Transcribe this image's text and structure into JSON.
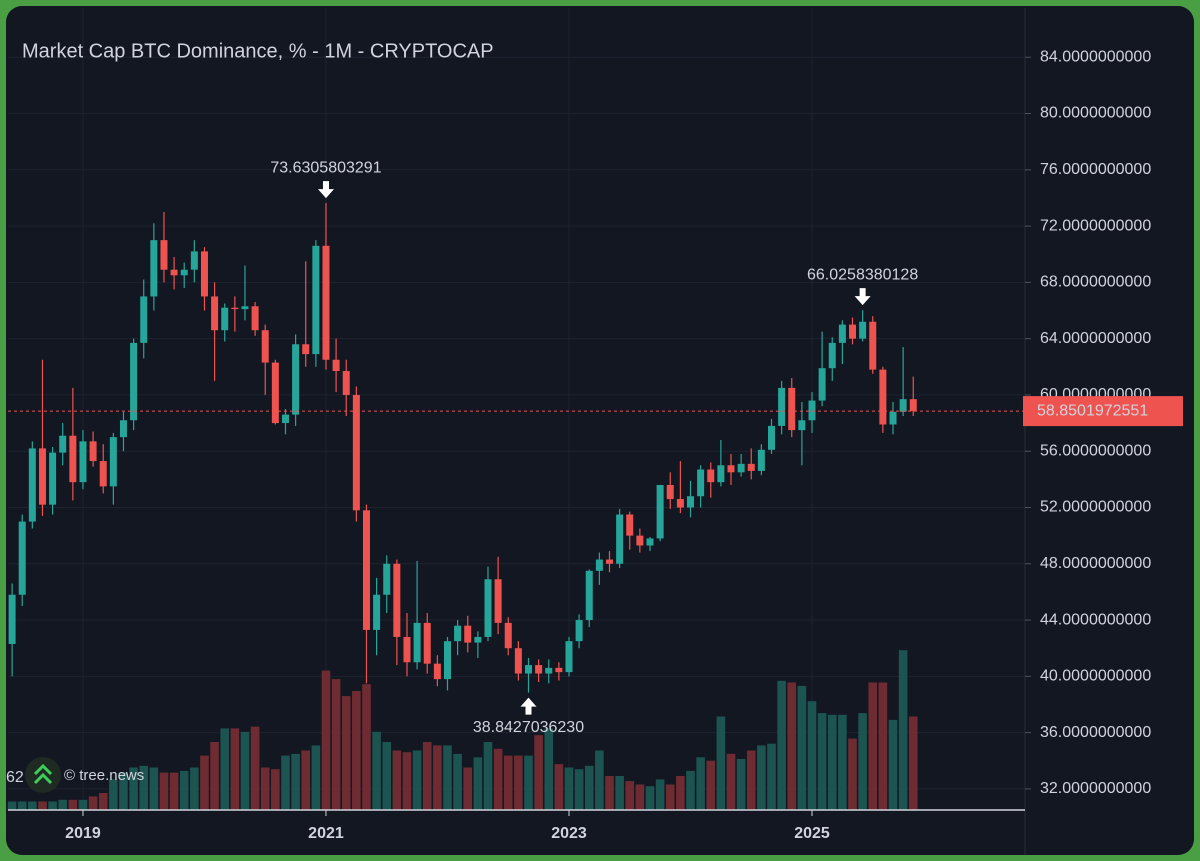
{
  "chart_data": {
    "type": "candlestick",
    "title": "Market Cap BTC Dominance, % - 1M - CRYPTOCAP",
    "x": [
      2018.4167,
      2018.5,
      2018.5833,
      2018.6667,
      2018.75,
      2018.8333,
      2018.9167,
      2019.0,
      2019.0833,
      2019.1667,
      2019.25,
      2019.3333,
      2019.4167,
      2019.5,
      2019.5833,
      2019.6667,
      2019.75,
      2019.8333,
      2019.9167,
      2020.0,
      2020.0833,
      2020.1667,
      2020.25,
      2020.3333,
      2020.4167,
      2020.5,
      2020.5833,
      2020.6667,
      2020.75,
      2020.8333,
      2020.9167,
      2021.0,
      2021.0833,
      2021.1667,
      2021.25,
      2021.3333,
      2021.4167,
      2021.5,
      2021.5833,
      2021.6667,
      2021.75,
      2021.8333,
      2021.9167,
      2022.0,
      2022.0833,
      2022.1667,
      2022.25,
      2022.3333,
      2022.4167,
      2022.5,
      2022.5833,
      2022.6667,
      2022.75,
      2022.8333,
      2022.9167,
      2023.0,
      2023.0833,
      2023.1667,
      2023.25,
      2023.3333,
      2023.4167,
      2023.5,
      2023.5833,
      2023.6667,
      2023.75,
      2023.8333,
      2023.9167,
      2024.0,
      2024.0833,
      2024.1667,
      2024.25,
      2024.3333,
      2024.4167,
      2024.5,
      2024.5833,
      2024.6667,
      2024.75,
      2024.8333,
      2024.9167,
      2025.0,
      2025.0833,
      2025.1667,
      2025.25,
      2025.3333,
      2025.4167,
      2025.5,
      2025.5833,
      2025.6667,
      2025.75,
      2025.8333
    ],
    "open": [
      42.3,
      45.8,
      51.0,
      56.2,
      52.2,
      55.9,
      57.1,
      53.8,
      56.7,
      55.3,
      53.5,
      57.0,
      58.2,
      63.7,
      67.0,
      71.0,
      68.9,
      68.5,
      68.9,
      70.2,
      67.0,
      64.6,
      66.2,
      66.1,
      66.3,
      64.6,
      62.3,
      58.0,
      58.6,
      63.6,
      62.9,
      70.6,
      62.5,
      61.7,
      60.0,
      51.8,
      43.3,
      45.8,
      48.0,
      42.8,
      41.0,
      43.8,
      40.9,
      39.8,
      42.5,
      43.6,
      42.4,
      42.8,
      46.9,
      43.8,
      42.0,
      40.2,
      40.8,
      40.2,
      40.6,
      40.3,
      42.5,
      44.0,
      47.5,
      48.3,
      48.0,
      51.5,
      50.0,
      49.3,
      49.8,
      53.6,
      52.6,
      52.0,
      52.8,
      54.7,
      53.8,
      55.0,
      54.5,
      55.1,
      54.6,
      56.1,
      57.8,
      60.5,
      57.5,
      58.2,
      59.6,
      61.9,
      63.7,
      65.0,
      64.0,
      65.2,
      61.8,
      57.9,
      58.8,
      59.7
    ],
    "high": [
      46.6,
      51.5,
      56.7,
      62.5,
      56.3,
      58.0,
      60.5,
      57.5,
      57.4,
      56.5,
      57.3,
      58.8,
      64.0,
      68.2,
      72.2,
      73.0,
      69.8,
      69.4,
      71.0,
      70.5,
      68.0,
      66.5,
      67.0,
      69.2,
      66.6,
      65.0,
      62.5,
      59.0,
      64.3,
      69.5,
      71.0,
      73.6305803291,
      64.0,
      62.5,
      60.6,
      52.2,
      47.0,
      48.6,
      48.3,
      44.5,
      48.2,
      44.5,
      41.5,
      42.8,
      44.0,
      44.3,
      43.2,
      47.8,
      48.5,
      44.2,
      42.5,
      41.3,
      41.2,
      41.2,
      41.0,
      42.8,
      44.4,
      47.6,
      48.8,
      48.9,
      51.9,
      51.7,
      50.5,
      49.9,
      53.6,
      54.5,
      55.3,
      53.9,
      55.0,
      55.2,
      56.8,
      55.8,
      55.8,
      56.2,
      56.5,
      58.3,
      61.0,
      61.2,
      59.5,
      60.2,
      64.5,
      64.1,
      65.3,
      65.5,
      66.0258380128,
      65.6,
      62.0,
      59.5,
      63.4,
      61.3
    ],
    "low": [
      40.0,
      45.0,
      50.5,
      51.4,
      51.5,
      55.0,
      52.5,
      53.3,
      54.9,
      53.0,
      52.2,
      56.0,
      57.5,
      62.6,
      66.0,
      68.0,
      67.5,
      67.6,
      68.0,
      66.0,
      61.0,
      63.8,
      64.5,
      65.3,
      64.2,
      60.0,
      57.9,
      57.2,
      57.8,
      62.0,
      62.0,
      61.8,
      60.2,
      58.5,
      51.0,
      39.5,
      41.5,
      44.5,
      40.8,
      40.0,
      40.5,
      40.2,
      39.3,
      39.0,
      41.5,
      41.7,
      41.3,
      42.5,
      43.0,
      41.5,
      39.7,
      38.842703623,
      39.6,
      39.5,
      39.7,
      40.0,
      42.0,
      43.5,
      46.5,
      47.4,
      47.7,
      49.0,
      48.8,
      48.9,
      49.6,
      51.9,
      51.6,
      51.3,
      52.0,
      52.7,
      53.5,
      53.6,
      54.2,
      54.0,
      54.3,
      55.8,
      57.2,
      57.0,
      55.0,
      57.3,
      59.2,
      61.0,
      62.2,
      63.6,
      63.8,
      61.5,
      57.3,
      57.2,
      58.5,
      58.5
    ],
    "close": [
      45.8,
      51.0,
      56.2,
      52.2,
      55.9,
      57.1,
      53.8,
      56.7,
      55.3,
      53.5,
      57.0,
      58.2,
      63.7,
      67.0,
      71.0,
      68.9,
      68.5,
      68.9,
      70.2,
      67.0,
      64.6,
      66.2,
      66.1,
      66.3,
      64.6,
      62.3,
      58.0,
      58.6,
      63.6,
      62.9,
      70.6,
      62.5,
      61.7,
      60.0,
      51.8,
      43.3,
      45.8,
      48.0,
      42.8,
      41.0,
      43.8,
      40.9,
      39.8,
      42.5,
      43.6,
      42.4,
      42.8,
      46.9,
      43.8,
      42.0,
      40.2,
      40.8,
      40.2,
      40.6,
      40.3,
      42.5,
      44.0,
      47.5,
      48.3,
      48.0,
      51.5,
      50.0,
      49.3,
      49.8,
      53.6,
      52.6,
      52.0,
      52.8,
      54.7,
      53.8,
      55.0,
      54.5,
      55.1,
      54.6,
      56.1,
      57.8,
      60.5,
      57.5,
      58.2,
      59.6,
      61.9,
      63.7,
      65.0,
      64.0,
      65.2,
      61.8,
      57.9,
      58.8,
      59.7,
      58.8501972551
    ],
    "volume": [
      5,
      5,
      5,
      5,
      5,
      6,
      6,
      6,
      8,
      10,
      18,
      22,
      25,
      26,
      25,
      22,
      22,
      23,
      25,
      32,
      40,
      48,
      48,
      46,
      49,
      25,
      24,
      32,
      33,
      35,
      38,
      82,
      77,
      67,
      70,
      74,
      46,
      40,
      35,
      34,
      35,
      40,
      38,
      38,
      33,
      25,
      31,
      40,
      36,
      32,
      32,
      32,
      44,
      48,
      27,
      25,
      24,
      26,
      35,
      20,
      20,
      17,
      15,
      14,
      18,
      15,
      20,
      23,
      31,
      29,
      55,
      33,
      30,
      35,
      38,
      39,
      76,
      75,
      73,
      64,
      57,
      56,
      56,
      42,
      57,
      75,
      75,
      53,
      94,
      55
    ],
    "up_color": "#26a69a",
    "down_color": "#ef5350",
    "volume_up_color": "#1b5451",
    "volume_down_color": "#6e2c32",
    "xlim": [
      2018.383,
      2026.753
    ],
    "xticks": [
      2019,
      2021,
      2023,
      2025
    ],
    "ylim": [
      30.5,
      87.5
    ],
    "yticks": [
      {
        "value": 32,
        "label": "32.0000000000"
      },
      {
        "value": 36,
        "label": "36.0000000000"
      },
      {
        "value": 40,
        "label": "40.0000000000"
      },
      {
        "value": 44,
        "label": "44.0000000000"
      },
      {
        "value": 48,
        "label": "48.0000000000"
      },
      {
        "value": 52,
        "label": "52.0000000000"
      },
      {
        "value": 56,
        "label": "56.0000000000"
      },
      {
        "value": 60,
        "label": "60.0000000000"
      },
      {
        "value": 64,
        "label": "64.0000000000"
      },
      {
        "value": 68,
        "label": "68.0000000000"
      },
      {
        "value": 72,
        "label": "72.0000000000"
      },
      {
        "value": 76,
        "label": "76.0000000000"
      },
      {
        "value": 80,
        "label": "80.0000000000"
      },
      {
        "value": 84,
        "label": "84.0000000000"
      }
    ],
    "y2lim": [
      0,
      100
    ],
    "grid": true,
    "annotations": [
      {
        "text": "73.6305803291",
        "x": 2021.0,
        "y": 73.6305803291,
        "arrow": "down"
      },
      {
        "text": "38.8427036230",
        "x": 2022.6667,
        "y": 38.842703623,
        "arrow": "up"
      },
      {
        "text": "66.0258380128",
        "x": 2025.4167,
        "y": 66.0258380128,
        "arrow": "down"
      }
    ],
    "volume_readout": "62",
    "watermark": "© tree.news"
  }
}
